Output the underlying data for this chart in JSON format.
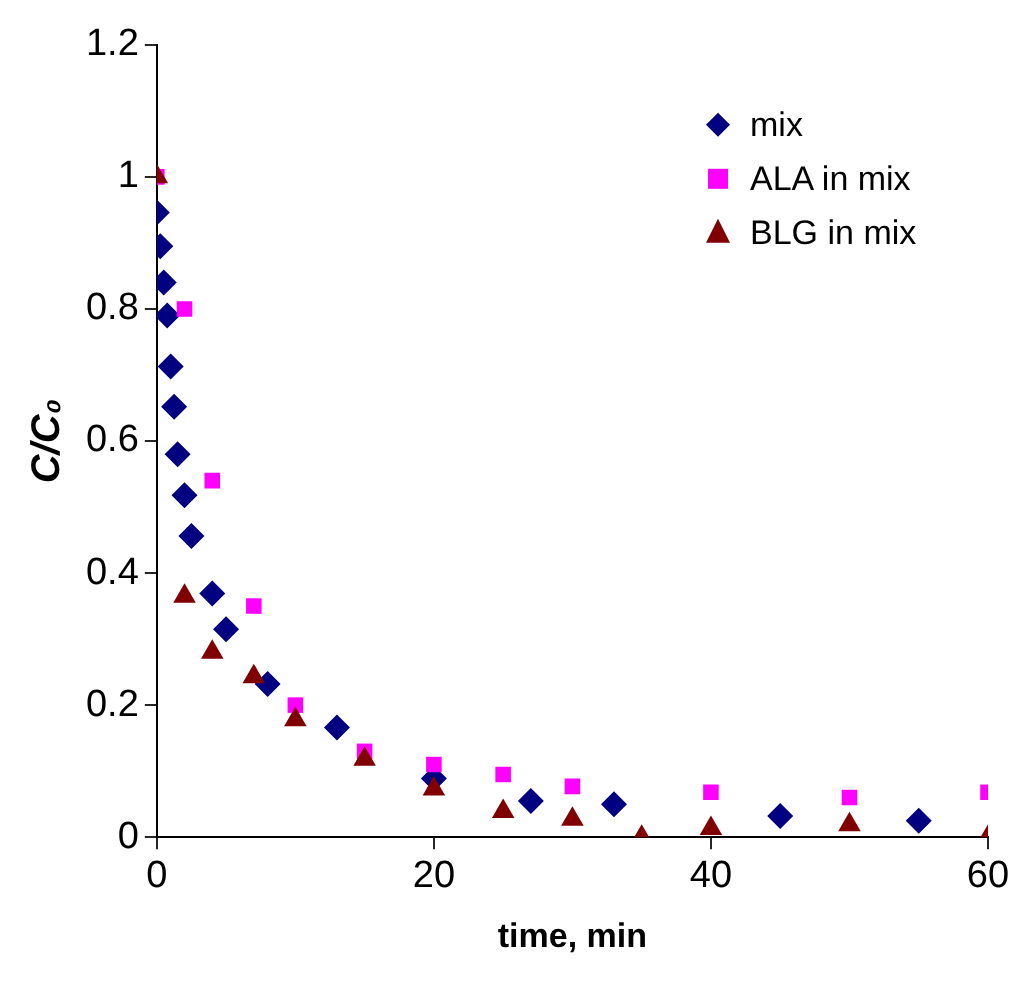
{
  "chart_data": {
    "type": "scatter",
    "xlabel": "time, min",
    "ylabel": "C/C₀",
    "xlim": [
      0,
      60
    ],
    "ylim": [
      0,
      1.2
    ],
    "xticks": [
      0,
      20,
      40,
      60
    ],
    "yticks": [
      0,
      0.2,
      0.4,
      0.6,
      0.8,
      1,
      1.2
    ],
    "grid": false,
    "legend": "top right",
    "series": [
      {
        "name": "mix",
        "color": "#000080",
        "marker": "diamond",
        "x": [
          0,
          0.25,
          0.5,
          0.75,
          1,
          1.25,
          1.5,
          2,
          2.5,
          4,
          5,
          8,
          13,
          20,
          27,
          33,
          45,
          55
        ],
        "values": [
          0.946,
          0.895,
          0.84,
          0.79,
          0.713,
          0.652,
          0.58,
          0.518,
          0.456,
          0.369,
          0.315,
          0.232,
          0.166,
          0.089,
          0.055,
          0.05,
          0.032,
          0.025
        ]
      },
      {
        "name": "ALA in mix",
        "color": "#ff00ff",
        "marker": "square",
        "x": [
          0,
          2,
          4,
          7,
          10,
          15,
          20,
          25,
          30,
          40,
          50,
          60
        ],
        "values": [
          1,
          0.8,
          0.54,
          0.35,
          0.2,
          0.13,
          0.11,
          0.095,
          0.077,
          0.068,
          0.06,
          0.068
        ]
      },
      {
        "name": "BLG in mix",
        "color": "#800000",
        "marker": "triangle",
        "x": [
          0,
          2,
          4,
          7,
          10,
          15,
          20,
          25,
          30,
          35,
          40,
          50,
          60
        ],
        "values": [
          1,
          0.365,
          0.28,
          0.243,
          0.178,
          0.118,
          0.073,
          0.039,
          0.027,
          0,
          0.013,
          0.019,
          0
        ]
      }
    ]
  }
}
